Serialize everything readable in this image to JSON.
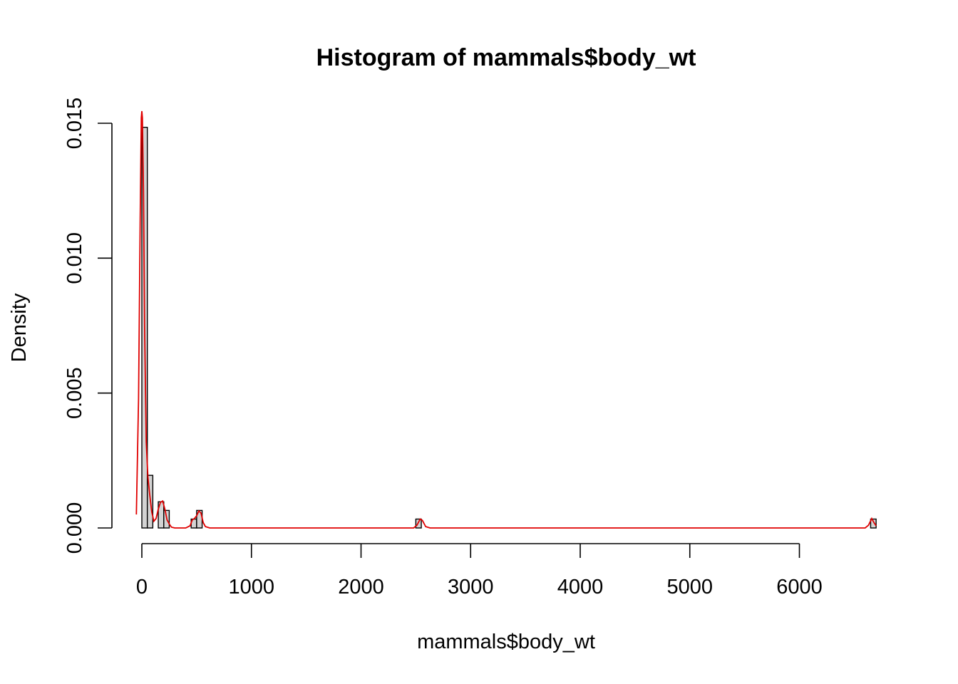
{
  "chart_data": {
    "type": "bar",
    "title": "Histogram of mammals$body_wt",
    "xlabel": "mammals$body_wt",
    "ylabel": "Density",
    "xlim": [
      -50,
      6700
    ],
    "ylim": [
      0,
      0.0155
    ],
    "x_ticks": [
      0,
      1000,
      2000,
      3000,
      4000,
      5000,
      6000
    ],
    "x_tick_labels": [
      "0",
      "1000",
      "2000",
      "3000",
      "4000",
      "5000",
      "6000"
    ],
    "y_ticks": [
      0,
      0.005,
      0.01,
      0.015
    ],
    "y_tick_labels": [
      "0.000",
      "0.005",
      "0.010",
      "0.015"
    ],
    "bin_width": 50,
    "bins": [
      {
        "x0": 0,
        "x1": 50,
        "density": 0.01485
      },
      {
        "x0": 50,
        "x1": 100,
        "density": 0.00195
      },
      {
        "x0": 150,
        "x1": 200,
        "density": 0.00097
      },
      {
        "x0": 200,
        "x1": 250,
        "density": 0.00065
      },
      {
        "x0": 450,
        "x1": 500,
        "density": 0.00033
      },
      {
        "x0": 500,
        "x1": 550,
        "density": 0.00065
      },
      {
        "x0": 2500,
        "x1": 2550,
        "density": 0.00033
      },
      {
        "x0": 6650,
        "x1": 6700,
        "density": 0.00033
      }
    ],
    "series": [
      {
        "name": "",
        "color": "#e00000",
        "x": [
          -50,
          -30,
          -15,
          -5,
          0,
          5,
          15,
          25,
          40,
          55,
          70,
          90,
          110,
          130,
          150,
          170,
          190,
          210,
          230,
          250,
          270,
          300,
          350,
          400,
          440,
          460,
          480,
          500,
          520,
          540,
          560,
          580,
          620,
          1000,
          2000,
          2480,
          2510,
          2540,
          2560,
          2590,
          2630,
          3000,
          4000,
          5000,
          6000,
          6600,
          6630,
          6660,
          6680,
          6700
        ],
        "y": [
          0.0005,
          0.0048,
          0.0115,
          0.0152,
          0.01545,
          0.0152,
          0.0125,
          0.0075,
          0.0032,
          0.0019,
          0.0013,
          0.0006,
          0.00025,
          0.00035,
          0.0007,
          0.00095,
          0.001,
          0.0007,
          0.0003,
          0.00015,
          3e-05,
          0.0,
          0.0,
          0.0,
          8e-05,
          0.0003,
          0.00035,
          0.00045,
          0.00063,
          0.00055,
          0.0002,
          5e-05,
          0.0,
          0.0,
          0.0,
          0.0,
          0.0001,
          0.00033,
          0.00028,
          5e-05,
          0.0,
          0.0,
          0.0,
          0.0,
          0.0,
          0.0,
          0.0001,
          0.00035,
          0.0002,
          8e-05
        ]
      }
    ],
    "bar_fill": "#d3d3d3",
    "bar_stroke": "#000000",
    "grid": false,
    "legend": "none"
  }
}
